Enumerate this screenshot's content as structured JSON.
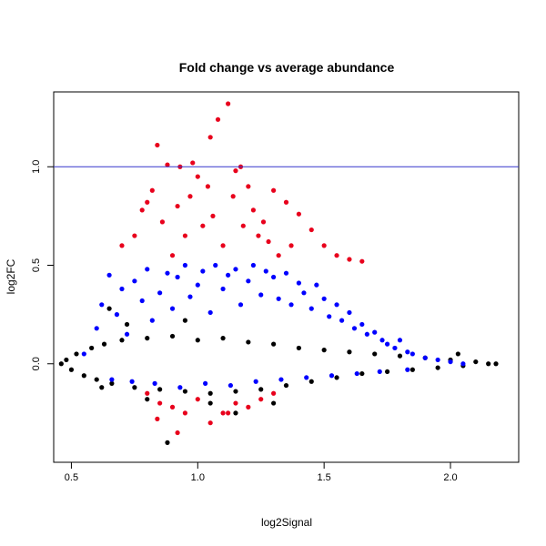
{
  "chart_data": {
    "type": "scatter",
    "title": "Fold change vs average abundance",
    "xlabel": "log2Signal",
    "ylabel": "log2FC",
    "xlim": [
      0.43,
      2.27
    ],
    "ylim": [
      -0.5,
      1.38
    ],
    "x_ticks": [
      0.5,
      1.0,
      1.5,
      2.0
    ],
    "x_tick_labels": [
      "0.5",
      "1.0",
      "1.5",
      "2.0"
    ],
    "y_ticks": [
      0.0,
      0.5,
      1.0
    ],
    "y_tick_labels": [
      "0.0",
      "0.5",
      "1.0"
    ],
    "reference_line": {
      "y": 1.0,
      "color": "#3333cc"
    },
    "grid": false,
    "legend": "none",
    "colors": {
      "black": "#000000",
      "blue": "#0000ff",
      "red": "#e8001c"
    },
    "series": [
      {
        "color": "black",
        "x": [
          0.46,
          0.48,
          0.5,
          0.52,
          0.55,
          0.58,
          0.6,
          0.63,
          0.66,
          0.7,
          0.75,
          0.8,
          0.85,
          0.9,
          0.95,
          1.0,
          1.05,
          1.1,
          1.15,
          1.2,
          1.25,
          1.3,
          1.35,
          1.4,
          1.45,
          1.5,
          1.55,
          1.6,
          1.65,
          1.7,
          1.75,
          1.8,
          1.85,
          1.9,
          1.95,
          2.0,
          2.05,
          2.1,
          2.15,
          2.18,
          0.65,
          0.72,
          0.95,
          1.05,
          0.88,
          0.62,
          0.8,
          1.15,
          1.3,
          2.03
        ],
        "y": [
          0.0,
          0.02,
          -0.03,
          0.05,
          -0.06,
          0.08,
          -0.08,
          0.1,
          -0.1,
          0.12,
          -0.12,
          0.13,
          -0.13,
          0.14,
          -0.14,
          0.12,
          -0.15,
          0.13,
          -0.14,
          0.11,
          -0.13,
          0.1,
          -0.11,
          0.08,
          -0.09,
          0.07,
          -0.07,
          0.06,
          -0.05,
          0.05,
          -0.04,
          0.04,
          -0.03,
          0.03,
          -0.02,
          0.02,
          -0.01,
          0.01,
          0.0,
          0.0,
          0.28,
          0.2,
          0.22,
          -0.2,
          -0.4,
          -0.12,
          -0.18,
          -0.25,
          -0.2,
          0.05
        ]
      },
      {
        "color": "blue",
        "x": [
          0.55,
          0.6,
          0.62,
          0.65,
          0.68,
          0.7,
          0.72,
          0.75,
          0.78,
          0.8,
          0.82,
          0.85,
          0.88,
          0.9,
          0.92,
          0.95,
          0.97,
          1.0,
          1.02,
          1.05,
          1.07,
          1.1,
          1.12,
          1.15,
          1.17,
          1.2,
          1.22,
          1.25,
          1.27,
          1.3,
          1.32,
          1.35,
          1.37,
          1.4,
          1.42,
          1.45,
          1.47,
          1.5,
          1.52,
          1.55,
          1.57,
          1.6,
          1.62,
          1.65,
          1.67,
          1.7,
          1.73,
          1.75,
          1.78,
          1.8,
          1.83,
          1.85,
          1.9,
          1.95,
          2.0,
          2.05,
          0.66,
          0.74,
          0.83,
          0.93,
          1.03,
          1.13,
          1.23,
          1.33,
          1.43,
          1.53,
          1.63,
          1.72,
          1.83
        ],
        "y": [
          0.05,
          0.18,
          0.3,
          0.45,
          0.25,
          0.38,
          0.15,
          0.42,
          0.32,
          0.48,
          0.22,
          0.36,
          0.46,
          0.28,
          0.44,
          0.5,
          0.34,
          0.4,
          0.47,
          0.26,
          0.5,
          0.38,
          0.45,
          0.48,
          0.3,
          0.42,
          0.5,
          0.35,
          0.47,
          0.44,
          0.33,
          0.46,
          0.3,
          0.41,
          0.36,
          0.28,
          0.4,
          0.33,
          0.24,
          0.3,
          0.22,
          0.26,
          0.18,
          0.2,
          0.15,
          0.16,
          0.12,
          0.1,
          0.08,
          0.12,
          0.06,
          0.05,
          0.03,
          0.02,
          0.01,
          0.0,
          -0.08,
          -0.09,
          -0.1,
          -0.12,
          -0.1,
          -0.11,
          -0.09,
          -0.08,
          -0.07,
          -0.06,
          -0.05,
          -0.04,
          -0.03
        ]
      },
      {
        "color": "red",
        "x": [
          0.7,
          0.75,
          0.78,
          0.8,
          0.82,
          0.84,
          0.86,
          0.88,
          0.9,
          0.92,
          0.93,
          0.95,
          0.97,
          0.98,
          1.0,
          1.02,
          1.04,
          1.05,
          1.06,
          1.08,
          1.1,
          1.12,
          1.14,
          1.15,
          1.17,
          1.18,
          1.2,
          1.22,
          1.24,
          1.26,
          1.28,
          1.3,
          1.32,
          1.35,
          1.37,
          1.4,
          1.45,
          1.5,
          1.55,
          1.6,
          1.65,
          0.8,
          0.85,
          0.9,
          0.95,
          1.0,
          1.05,
          1.1,
          1.15,
          1.2,
          1.25,
          1.3,
          0.84,
          0.92,
          1.12
        ],
        "y": [
          0.6,
          0.65,
          0.78,
          0.82,
          0.88,
          1.11,
          0.72,
          1.01,
          0.55,
          0.8,
          1.0,
          0.65,
          0.85,
          1.02,
          0.95,
          0.7,
          0.9,
          1.15,
          0.75,
          1.24,
          0.6,
          1.32,
          0.85,
          0.98,
          1.0,
          0.7,
          0.9,
          0.78,
          0.65,
          0.72,
          0.62,
          0.88,
          0.55,
          0.82,
          0.6,
          0.76,
          0.68,
          0.6,
          0.55,
          0.53,
          0.52,
          -0.15,
          -0.2,
          -0.22,
          -0.25,
          -0.18,
          -0.3,
          -0.25,
          -0.2,
          -0.22,
          -0.18,
          -0.15,
          -0.28,
          -0.35,
          -0.25
        ]
      }
    ]
  }
}
